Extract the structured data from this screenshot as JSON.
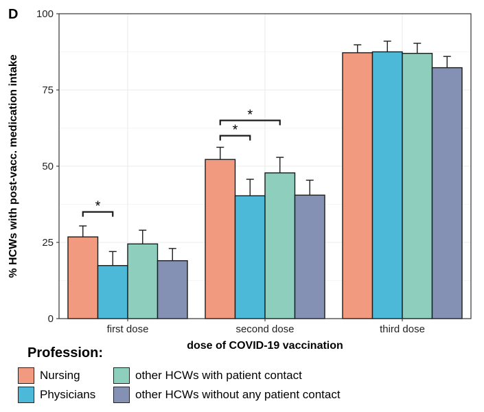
{
  "panel_letter": "D",
  "legend": {
    "title": "Profession:",
    "items": [
      {
        "label": "Nursing",
        "color": "#F19A80"
      },
      {
        "label": "Physicians",
        "color": "#4CB9D8"
      },
      {
        "label": "other HCWs with patient contact",
        "color": "#8DCFBC"
      },
      {
        "label": "other HCWs without any patient contact",
        "color": "#8491B4"
      }
    ]
  },
  "chart_data": {
    "type": "bar",
    "title": "",
    "xlabel": "dose of COVID-19 vaccination",
    "ylabel": "% HCWs with post-vacc. medication intake",
    "ylim": [
      0,
      100
    ],
    "yticks": [
      0,
      25,
      50,
      75,
      100
    ],
    "grid": true,
    "legend_position": "bottom",
    "categories": [
      "first dose",
      "second dose",
      "third dose"
    ],
    "series": [
      {
        "name": "Nursing",
        "color": "#F19A80",
        "values": [
          26.8,
          52.2,
          87.2
        ],
        "error_upper": [
          30.4,
          56.2,
          89.8
        ]
      },
      {
        "name": "Physicians",
        "color": "#4CB9D8",
        "values": [
          17.4,
          40.3,
          87.5
        ],
        "error_upper": [
          22.0,
          45.7,
          91.0
        ]
      },
      {
        "name": "other HCWs with patient contact",
        "color": "#8DCFBC",
        "values": [
          24.5,
          47.8,
          87.0
        ],
        "error_upper": [
          29.0,
          52.9,
          90.3
        ]
      },
      {
        "name": "other HCWs without any patient contact",
        "color": "#8491B4",
        "values": [
          19.0,
          40.5,
          82.3
        ],
        "error_upper": [
          23.0,
          45.4,
          86.0
        ]
      }
    ],
    "significance": [
      {
        "category": 0,
        "from_series": 0,
        "to_series": 1,
        "y": 35,
        "label": "*"
      },
      {
        "category": 1,
        "from_series": 0,
        "to_series": 1,
        "y": 60,
        "label": "*"
      },
      {
        "category": 1,
        "from_series": 0,
        "to_series": 2,
        "y": 65,
        "label": "*"
      }
    ]
  }
}
